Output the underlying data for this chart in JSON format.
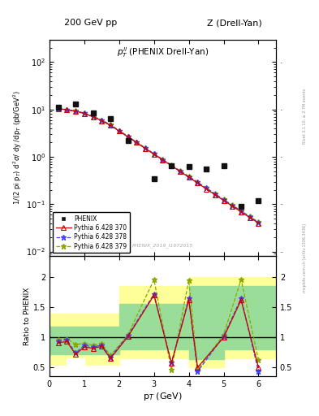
{
  "title_left": "200 GeV pp",
  "title_right": "Z (Drell-Yan)",
  "inner_title": "$p_T^{ll}$ (PHENIX Drell-Yan)",
  "watermark": "PHENIX_2019_I1672015",
  "right_label": "mcplots.cern.ch [arXiv:1306.3436]",
  "right_label2": "Rivet 3.1.10, ≥ 2.7M events",
  "ylabel_main": "1/(2 pi p$_T$) d$^2$$\\sigma$/ dy /dp$_T$ (pb/GeV$^2$)",
  "ylabel_ratio": "Ratio to PHENIX",
  "xlabel": "p$_T$ (GeV)",
  "phenix_pt": [
    0.25,
    0.75,
    1.25,
    1.75,
    2.25,
    3.0,
    3.5,
    4.0,
    4.5,
    5.0,
    5.5,
    6.0
  ],
  "phenix_val": [
    11.0,
    13.0,
    8.5,
    6.5,
    2.2,
    0.35,
    0.65,
    0.62,
    0.55,
    0.65,
    0.09,
    0.12
  ],
  "py370_pt": [
    0.25,
    0.5,
    0.75,
    1.0,
    1.25,
    1.5,
    1.75,
    2.0,
    2.25,
    2.5,
    2.75,
    3.0,
    3.25,
    3.5,
    3.75,
    4.0,
    4.25,
    4.5,
    4.75,
    5.0,
    5.25,
    5.5,
    5.75,
    6.0
  ],
  "py370_val": [
    10.5,
    9.8,
    9.2,
    8.2,
    7.0,
    5.8,
    4.6,
    3.5,
    2.65,
    2.0,
    1.5,
    1.14,
    0.86,
    0.65,
    0.49,
    0.37,
    0.28,
    0.21,
    0.158,
    0.12,
    0.091,
    0.069,
    0.052,
    0.04
  ],
  "py378_pt": [
    0.25,
    0.5,
    0.75,
    1.0,
    1.25,
    1.5,
    1.75,
    2.0,
    2.25,
    2.5,
    2.75,
    3.0,
    3.25,
    3.5,
    3.75,
    4.0,
    4.25,
    4.5,
    4.75,
    5.0,
    5.25,
    5.5,
    5.75,
    6.0
  ],
  "py378_val": [
    10.5,
    9.8,
    9.3,
    8.3,
    7.1,
    5.9,
    4.7,
    3.55,
    2.68,
    2.02,
    1.52,
    1.15,
    0.87,
    0.66,
    0.5,
    0.38,
    0.29,
    0.22,
    0.165,
    0.124,
    0.094,
    0.071,
    0.054,
    0.041
  ],
  "py379_pt": [
    0.25,
    0.5,
    0.75,
    1.0,
    1.25,
    1.5,
    1.75,
    2.0,
    2.25,
    2.5,
    2.75,
    3.0,
    3.25,
    3.5,
    3.75,
    4.0,
    4.25,
    4.5,
    4.75,
    5.0,
    5.25,
    5.5,
    5.75,
    6.0
  ],
  "py379_val": [
    10.6,
    9.9,
    9.4,
    8.4,
    7.2,
    6.0,
    4.8,
    3.6,
    2.72,
    2.05,
    1.55,
    1.17,
    0.89,
    0.67,
    0.51,
    0.39,
    0.29,
    0.22,
    0.167,
    0.126,
    0.096,
    0.073,
    0.055,
    0.042
  ],
  "ratio370_pt": [
    0.25,
    0.5,
    0.75,
    1.0,
    1.25,
    1.5,
    1.75,
    2.25,
    3.0,
    3.5,
    4.0,
    4.25,
    5.0,
    5.5,
    6.0
  ],
  "ratio370_val": [
    0.91,
    0.93,
    0.72,
    0.84,
    0.82,
    0.85,
    0.65,
    1.01,
    1.7,
    0.57,
    1.62,
    0.5,
    1.0,
    1.62,
    0.5
  ],
  "ratio378_pt": [
    0.25,
    0.5,
    0.75,
    1.0,
    1.25,
    1.5,
    1.75,
    2.25,
    3.0,
    3.5,
    4.0,
    4.25,
    5.0,
    5.5,
    6.0
  ],
  "ratio378_val": [
    0.94,
    0.96,
    0.74,
    0.87,
    0.84,
    0.87,
    0.67,
    1.03,
    1.72,
    0.58,
    1.65,
    0.43,
    1.02,
    1.65,
    0.43
  ],
  "ratio379_pt": [
    0.25,
    0.5,
    0.75,
    1.0,
    1.25,
    1.5,
    1.75,
    2.25,
    3.0,
    3.5,
    4.0,
    4.25,
    5.0,
    5.5,
    6.0
  ],
  "ratio379_val": [
    0.96,
    0.98,
    0.88,
    0.9,
    0.87,
    0.9,
    0.7,
    1.04,
    1.96,
    0.46,
    1.95,
    0.46,
    1.05,
    1.96,
    0.62
  ],
  "yb_edges": [
    0.0,
    0.5,
    1.0,
    1.5,
    2.0,
    2.5,
    3.0,
    3.5,
    4.0,
    4.5,
    5.0,
    5.5,
    6.5
  ],
  "yb_lo": [
    0.55,
    0.55,
    0.55,
    0.55,
    0.65,
    0.65,
    0.65,
    0.65,
    0.5,
    0.5,
    0.65,
    0.65
  ],
  "yb_hi": [
    1.4,
    1.4,
    1.4,
    1.4,
    1.85,
    1.85,
    1.85,
    1.85,
    2.0,
    2.0,
    2.0,
    2.0
  ],
  "gb_edges": [
    0.0,
    0.5,
    1.0,
    1.5,
    2.0,
    2.5,
    3.0,
    3.5,
    4.0,
    4.5,
    5.0,
    5.5,
    6.5
  ],
  "gb_lo": [
    0.72,
    0.72,
    0.72,
    0.72,
    0.8,
    0.8,
    0.8,
    0.8,
    0.64,
    0.64,
    0.8,
    0.8
  ],
  "gb_hi": [
    1.18,
    1.18,
    1.18,
    1.18,
    1.55,
    1.55,
    1.55,
    1.55,
    1.85,
    1.85,
    1.85,
    1.85
  ],
  "wb_x1": 0.5,
  "wb_x2": 1.0,
  "wb_lo": 0.35,
  "wb_hi": 0.65,
  "color_370": "#cc0000",
  "color_378": "#4444ff",
  "color_379": "#88aa00",
  "color_phenix": "#111111",
  "color_yellow": "#ffff99",
  "color_green": "#99dd99",
  "ylim_main": [
    0.008,
    300
  ],
  "ylim_ratio": [
    0.35,
    2.35
  ],
  "xlim": [
    0,
    6.5
  ]
}
